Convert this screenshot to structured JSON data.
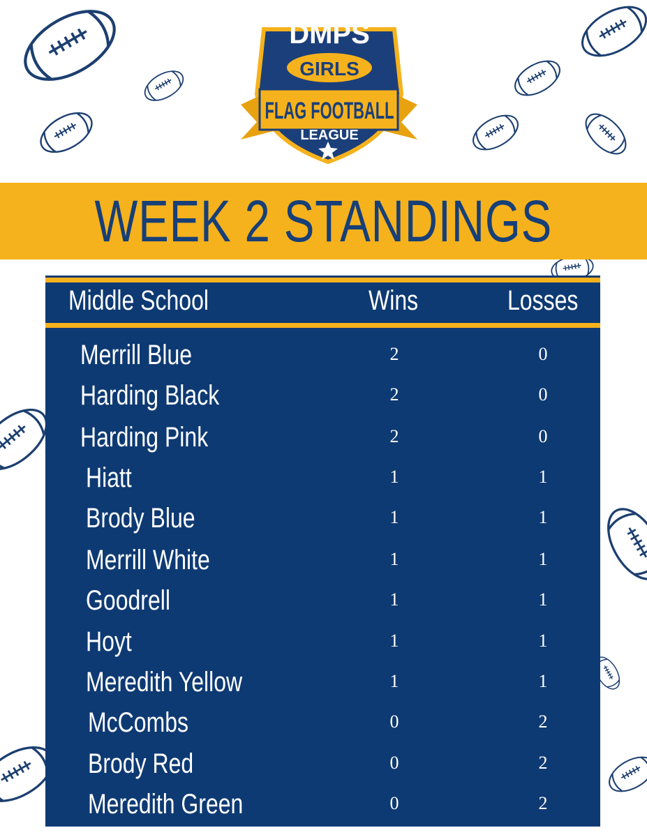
{
  "logo": {
    "line1": "DMPS",
    "line2": "GIRLS",
    "line3": "FLAG FOOTBALL",
    "line4": "LEAGUE"
  },
  "title": "WEEK 2 STANDINGS",
  "table": {
    "header": [
      "Middle School",
      "Wins",
      "Losses"
    ],
    "rows": [
      [
        "Merrill Blue",
        2,
        0
      ],
      [
        "Harding Black",
        2,
        0
      ],
      [
        "Harding Pink",
        2,
        0
      ],
      [
        "Hiatt",
        1,
        1
      ],
      [
        "Brody Blue",
        1,
        1
      ],
      [
        "Merrill White",
        1,
        1
      ],
      [
        "Goodrell",
        1,
        1
      ],
      [
        "Hoyt",
        1,
        1
      ],
      [
        "Meredith Yellow",
        1,
        1
      ],
      [
        "McCombs",
        0,
        2
      ],
      [
        "Brody Red",
        0,
        2
      ],
      [
        "Meredith Green",
        0,
        2
      ]
    ]
  }
}
